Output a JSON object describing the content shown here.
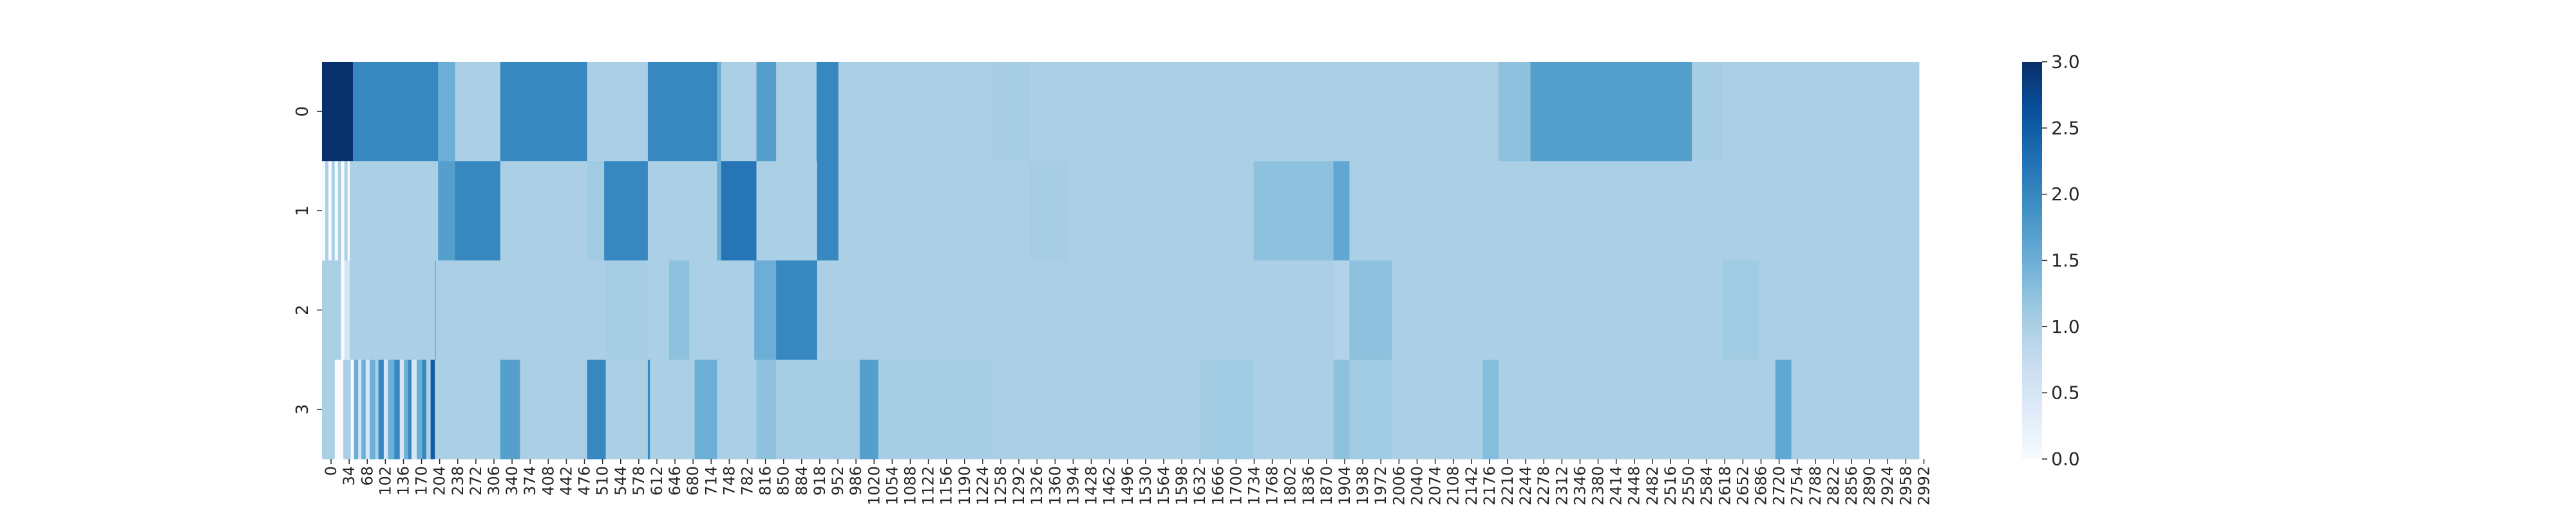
{
  "chart_data": {
    "type": "heatmap",
    "title": "",
    "xlabel": "",
    "ylabel": "",
    "x_range": [
      0,
      3000
    ],
    "rows": [
      "0",
      "1",
      "2",
      "3"
    ],
    "x_tick_labels": [
      "0",
      "34",
      "68",
      "102",
      "136",
      "170",
      "204",
      "238",
      "272",
      "306",
      "340",
      "374",
      "408",
      "442",
      "476",
      "510",
      "544",
      "578",
      "612",
      "646",
      "680",
      "714",
      "748",
      "782",
      "816",
      "850",
      "884",
      "918",
      "952",
      "986",
      "1020",
      "1054",
      "1088",
      "1122",
      "1156",
      "1190",
      "1224",
      "1258",
      "1292",
      "1326",
      "1360",
      "1394",
      "1428",
      "1462",
      "1496",
      "1530",
      "1564",
      "1598",
      "1632",
      "1666",
      "1700",
      "1734",
      "1768",
      "1802",
      "1836",
      "1870",
      "1904",
      "1938",
      "1972",
      "2006",
      "2040",
      "2074",
      "2108",
      "2142",
      "2176",
      "2210",
      "2244",
      "2278",
      "2312",
      "2346",
      "2380",
      "2414",
      "2448",
      "2482",
      "2516",
      "2550",
      "2584",
      "2618",
      "2652",
      "2686",
      "2720",
      "2754",
      "2788",
      "2822",
      "2856",
      "2890",
      "2924",
      "2958",
      "2992"
    ],
    "row_segments": [
      [
        {
          "x0": 0,
          "x1": 58,
          "v": 3.0
        },
        {
          "x0": 58,
          "x1": 218,
          "v": 2.0
        },
        {
          "x0": 218,
          "x1": 250,
          "v": 1.5
        },
        {
          "x0": 250,
          "x1": 335,
          "v": 1.0
        },
        {
          "x0": 335,
          "x1": 498,
          "v": 2.0
        },
        {
          "x0": 498,
          "x1": 612,
          "v": 1.0
        },
        {
          "x0": 612,
          "x1": 742,
          "v": 2.0
        },
        {
          "x0": 742,
          "x1": 750,
          "v": 1.5
        },
        {
          "x0": 750,
          "x1": 816,
          "v": 1.0
        },
        {
          "x0": 816,
          "x1": 853,
          "v": 1.7
        },
        {
          "x0": 853,
          "x1": 929,
          "v": 1.0
        },
        {
          "x0": 929,
          "x1": 970,
          "v": 2.0
        },
        {
          "x0": 970,
          "x1": 1260,
          "v": 1.0
        },
        {
          "x0": 1260,
          "x1": 1330,
          "v": 1.05
        },
        {
          "x0": 1330,
          "x1": 2210,
          "v": 1.0
        },
        {
          "x0": 2210,
          "x1": 2270,
          "v": 1.25
        },
        {
          "x0": 2270,
          "x1": 2573,
          "v": 1.7
        },
        {
          "x0": 2573,
          "x1": 2630,
          "v": 1.05
        },
        {
          "x0": 2630,
          "x1": 3000,
          "v": 1.0
        }
      ],
      [
        {
          "x0": 0,
          "x1": 6,
          "v": 0.0
        },
        {
          "x0": 6,
          "x1": 12,
          "v": 1.0
        },
        {
          "x0": 12,
          "x1": 18,
          "v": 0.0
        },
        {
          "x0": 18,
          "x1": 24,
          "v": 1.0
        },
        {
          "x0": 24,
          "x1": 30,
          "v": 0.0
        },
        {
          "x0": 30,
          "x1": 36,
          "v": 1.0
        },
        {
          "x0": 36,
          "x1": 42,
          "v": 0.0
        },
        {
          "x0": 42,
          "x1": 48,
          "v": 1.0
        },
        {
          "x0": 48,
          "x1": 52,
          "v": 0.0
        },
        {
          "x0": 52,
          "x1": 218,
          "v": 1.0
        },
        {
          "x0": 218,
          "x1": 250,
          "v": 1.7
        },
        {
          "x0": 250,
          "x1": 335,
          "v": 2.0
        },
        {
          "x0": 335,
          "x1": 498,
          "v": 1.0
        },
        {
          "x0": 498,
          "x1": 530,
          "v": 1.1
        },
        {
          "x0": 530,
          "x1": 612,
          "v": 2.0
        },
        {
          "x0": 612,
          "x1": 742,
          "v": 1.0
        },
        {
          "x0": 742,
          "x1": 750,
          "v": 1.5
        },
        {
          "x0": 750,
          "x1": 816,
          "v": 2.2
        },
        {
          "x0": 816,
          "x1": 930,
          "v": 1.0
        },
        {
          "x0": 930,
          "x1": 970,
          "v": 2.0
        },
        {
          "x0": 970,
          "x1": 1330,
          "v": 1.0
        },
        {
          "x0": 1330,
          "x1": 1400,
          "v": 1.05
        },
        {
          "x0": 1400,
          "x1": 1750,
          "v": 1.0
        },
        {
          "x0": 1750,
          "x1": 1900,
          "v": 1.25
        },
        {
          "x0": 1900,
          "x1": 1930,
          "v": 1.6
        },
        {
          "x0": 1930,
          "x1": 3000,
          "v": 1.0
        }
      ],
      [
        {
          "x0": 0,
          "x1": 36,
          "v": 1.0
        },
        {
          "x0": 36,
          "x1": 42,
          "v": 0.0
        },
        {
          "x0": 42,
          "x1": 52,
          "v": 0.5
        },
        {
          "x0": 52,
          "x1": 212,
          "v": 1.0
        },
        {
          "x0": 212,
          "x1": 214,
          "v": 1.5
        },
        {
          "x0": 214,
          "x1": 533,
          "v": 1.0
        },
        {
          "x0": 533,
          "x1": 612,
          "v": 1.05
        },
        {
          "x0": 612,
          "x1": 652,
          "v": 1.0
        },
        {
          "x0": 652,
          "x1": 690,
          "v": 1.25
        },
        {
          "x0": 690,
          "x1": 812,
          "v": 1.0
        },
        {
          "x0": 812,
          "x1": 853,
          "v": 1.5
        },
        {
          "x0": 853,
          "x1": 930,
          "v": 2.0
        },
        {
          "x0": 930,
          "x1": 1900,
          "v": 1.0
        },
        {
          "x0": 1900,
          "x1": 1930,
          "v": 0.95
        },
        {
          "x0": 1930,
          "x1": 2010,
          "v": 1.25
        },
        {
          "x0": 2010,
          "x1": 2630,
          "v": 1.0
        },
        {
          "x0": 2630,
          "x1": 2700,
          "v": 1.1
        },
        {
          "x0": 2700,
          "x1": 3000,
          "v": 1.0
        }
      ],
      [
        {
          "x0": 0,
          "x1": 24,
          "v": 1.0
        },
        {
          "x0": 24,
          "x1": 40,
          "v": 0.0
        },
        {
          "x0": 40,
          "x1": 54,
          "v": 1.0
        },
        {
          "x0": 54,
          "x1": 60,
          "v": 0.0
        },
        {
          "x0": 60,
          "x1": 68,
          "v": 1.5
        },
        {
          "x0": 68,
          "x1": 74,
          "v": 0.5
        },
        {
          "x0": 74,
          "x1": 82,
          "v": 1.5
        },
        {
          "x0": 82,
          "x1": 90,
          "v": 0.5
        },
        {
          "x0": 90,
          "x1": 100,
          "v": 1.5
        },
        {
          "x0": 100,
          "x1": 106,
          "v": 1.0
        },
        {
          "x0": 106,
          "x1": 116,
          "v": 2.0
        },
        {
          "x0": 116,
          "x1": 124,
          "v": 0.5
        },
        {
          "x0": 124,
          "x1": 136,
          "v": 1.5
        },
        {
          "x0": 136,
          "x1": 146,
          "v": 2.0
        },
        {
          "x0": 146,
          "x1": 154,
          "v": 0.5
        },
        {
          "x0": 154,
          "x1": 162,
          "v": 1.5
        },
        {
          "x0": 162,
          "x1": 168,
          "v": 2.0
        },
        {
          "x0": 168,
          "x1": 178,
          "v": 0.5
        },
        {
          "x0": 178,
          "x1": 188,
          "v": 1.5
        },
        {
          "x0": 188,
          "x1": 196,
          "v": 2.0
        },
        {
          "x0": 196,
          "x1": 204,
          "v": 1.0
        },
        {
          "x0": 204,
          "x1": 212,
          "v": 2.5
        },
        {
          "x0": 212,
          "x1": 335,
          "v": 1.0
        },
        {
          "x0": 335,
          "x1": 372,
          "v": 1.7
        },
        {
          "x0": 372,
          "x1": 498,
          "v": 1.0
        },
        {
          "x0": 498,
          "x1": 533,
          "v": 2.0
        },
        {
          "x0": 533,
          "x1": 612,
          "v": 1.0
        },
        {
          "x0": 612,
          "x1": 616,
          "v": 2.0
        },
        {
          "x0": 616,
          "x1": 700,
          "v": 1.0
        },
        {
          "x0": 700,
          "x1": 742,
          "v": 1.5
        },
        {
          "x0": 742,
          "x1": 816,
          "v": 1.0
        },
        {
          "x0": 816,
          "x1": 853,
          "v": 1.25
        },
        {
          "x0": 853,
          "x1": 1010,
          "v": 1.05
        },
        {
          "x0": 1010,
          "x1": 1045,
          "v": 1.7
        },
        {
          "x0": 1045,
          "x1": 1260,
          "v": 1.05
        },
        {
          "x0": 1260,
          "x1": 1650,
          "v": 1.0
        },
        {
          "x0": 1650,
          "x1": 1750,
          "v": 1.1
        },
        {
          "x0": 1750,
          "x1": 1900,
          "v": 1.0
        },
        {
          "x0": 1900,
          "x1": 1930,
          "v": 1.25
        },
        {
          "x0": 1930,
          "x1": 2010,
          "v": 1.1
        },
        {
          "x0": 2010,
          "x1": 2180,
          "v": 1.0
        },
        {
          "x0": 2180,
          "x1": 2210,
          "v": 1.3
        },
        {
          "x0": 2210,
          "x1": 2730,
          "v": 1.0
        },
        {
          "x0": 2730,
          "x1": 2760,
          "v": 1.6
        },
        {
          "x0": 2760,
          "x1": 3000,
          "v": 1.0
        }
      ]
    ],
    "colorbar": {
      "min": 0.0,
      "max": 3.0,
      "ticks": [
        "0.0",
        "0.5",
        "1.0",
        "1.5",
        "2.0",
        "2.5",
        "3.0"
      ],
      "colormap": "Blues",
      "colors": [
        "#f7fbff",
        "#deebf7",
        "#c6dbef",
        "#9ecae1",
        "#6baed6",
        "#4292c6",
        "#2171b5",
        "#08519c",
        "#08306b"
      ]
    },
    "grid": false,
    "legend": "colorbar-right"
  }
}
